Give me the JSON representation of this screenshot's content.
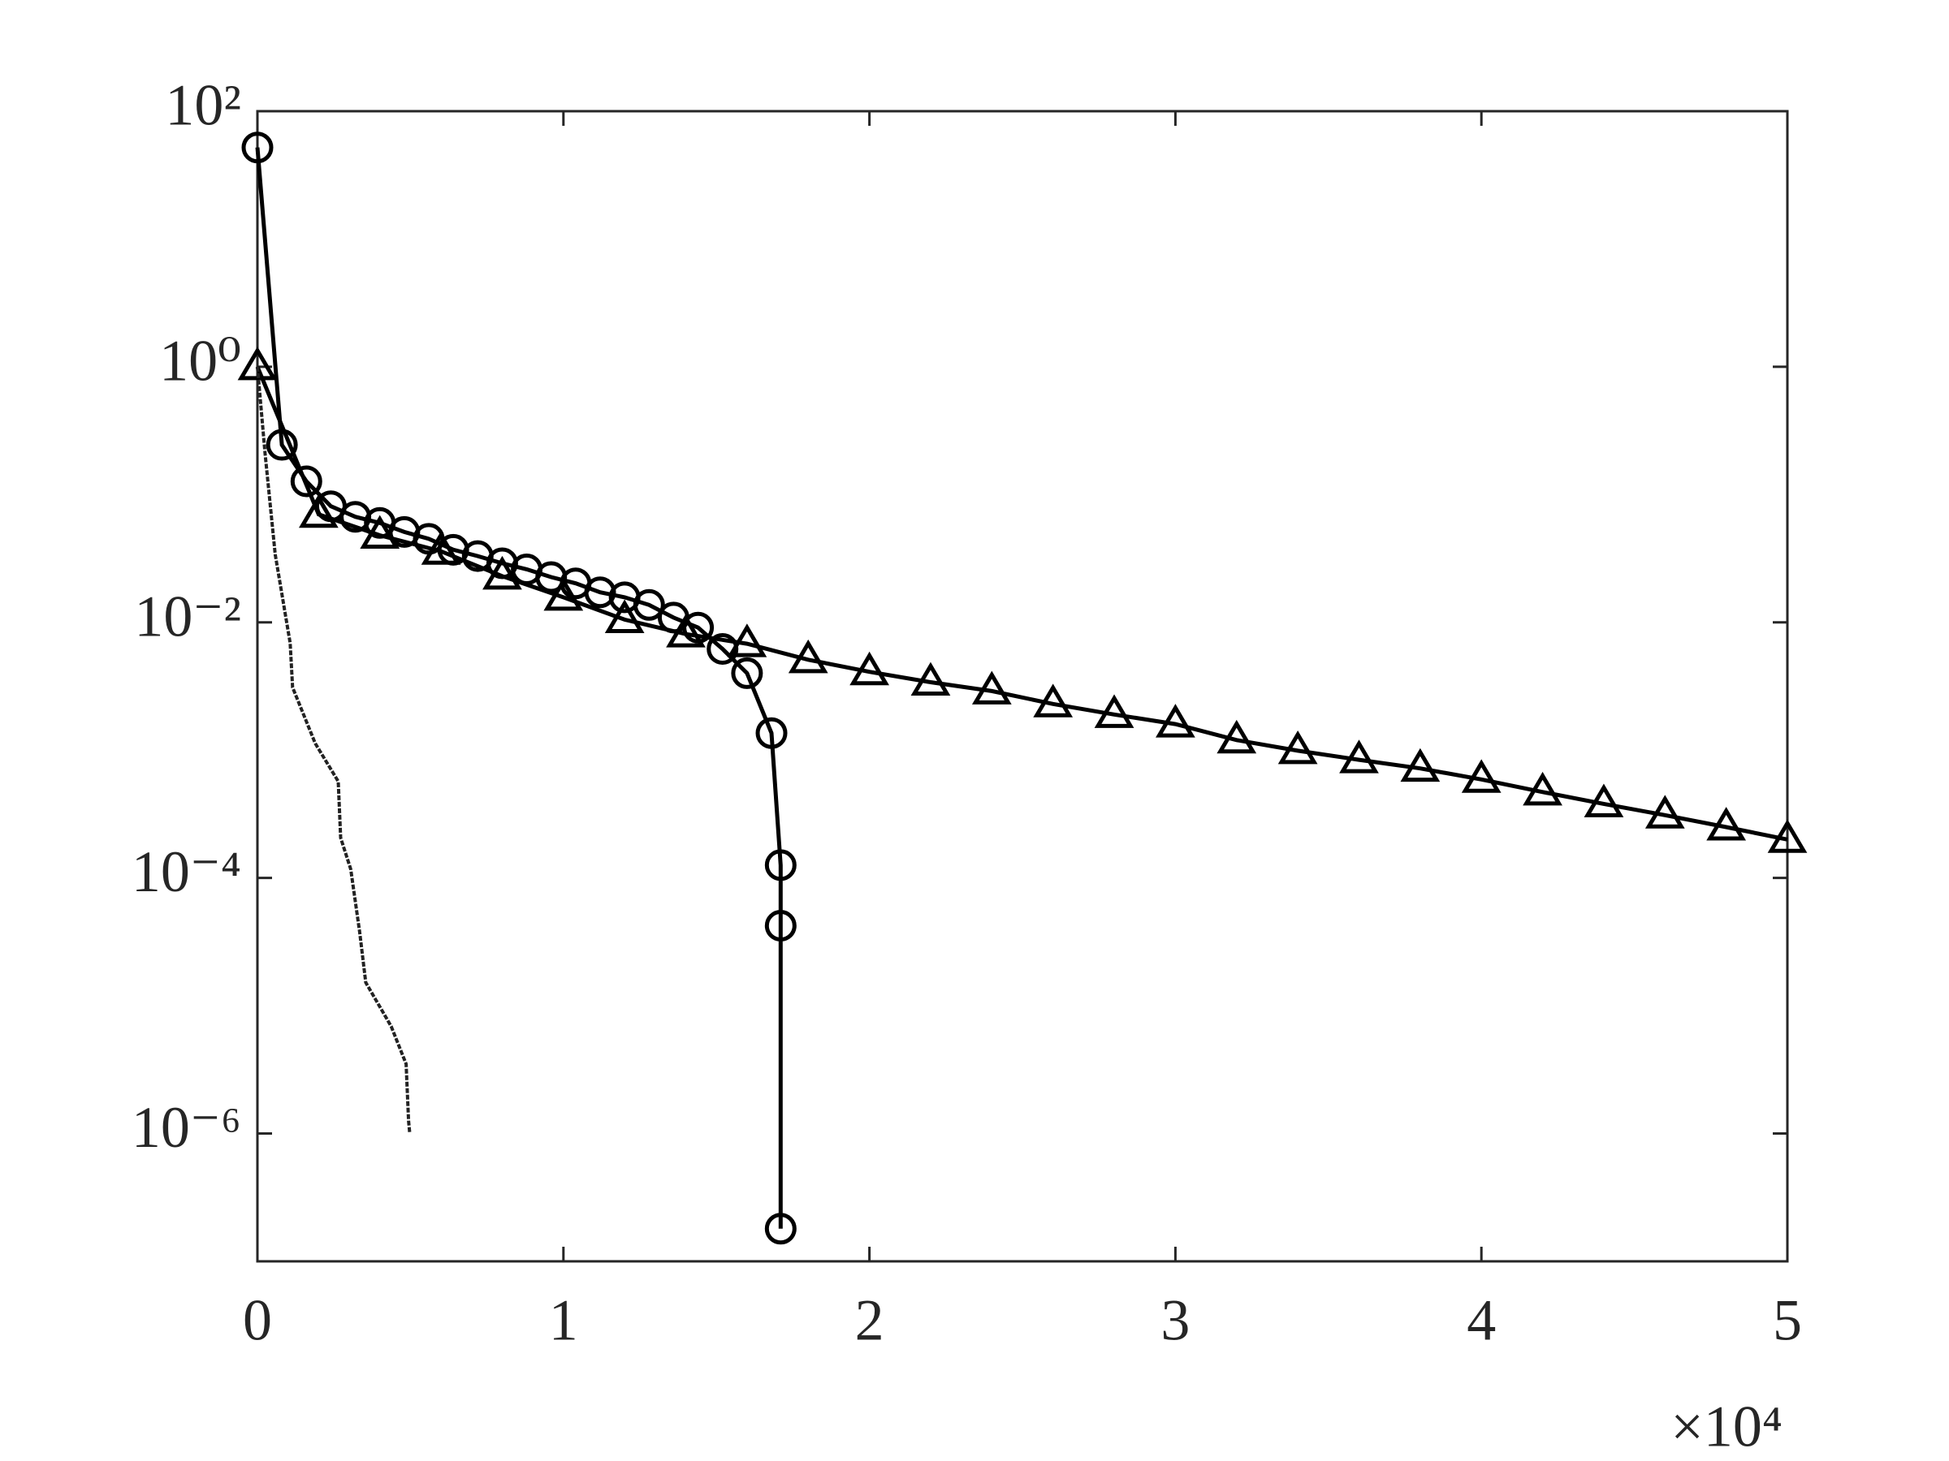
{
  "chart_data": {
    "type": "line",
    "xlim": [
      0,
      50000
    ],
    "xticks": [
      0,
      {
        "value": 10000,
        "label": "1"
      },
      {
        "value": 20000,
        "label": "2"
      },
      {
        "value": 30000,
        "label": "3"
      },
      {
        "value": 40000,
        "label": "4"
      },
      {
        "value": 50000,
        "label": "5"
      }
    ],
    "x_multiplier": "×10⁴",
    "ylim": [
      1e-07,
      100
    ],
    "y_scale": "log",
    "yticks": [
      {
        "value": 100,
        "label": "10²"
      },
      {
        "value": 1,
        "label": "10⁰"
      },
      {
        "value": 0.01,
        "label": "10⁻²"
      },
      {
        "value": 0.0001,
        "label": "10⁻⁴"
      },
      {
        "value": 1e-06,
        "label": "10⁻⁶"
      }
    ],
    "grid": false,
    "series": [
      {
        "color": "#000000",
        "marker": "triangle",
        "x": [
          0,
          2000,
          4000,
          6000,
          8000,
          10000,
          12000,
          14000,
          16000,
          18000,
          20000,
          22000,
          24000,
          26000,
          28000,
          30000,
          32000,
          34000,
          36000,
          38000,
          40000,
          42000,
          44000,
          46000,
          48000,
          50000
        ],
        "values": [
          1,
          0.07,
          0.048,
          0.036,
          0.023,
          0.0157,
          0.0105,
          0.0081,
          0.0068,
          0.0051,
          0.0041,
          0.0034,
          0.0029,
          0.0023,
          0.0019,
          0.0016,
          0.0012,
          0.00099,
          0.00084,
          0.00072,
          0.00059,
          0.00047,
          0.00038,
          0.00031,
          0.00025,
          0.0002
        ]
      },
      {
        "color": "#000000",
        "marker": "circle",
        "x": [
          0,
          800,
          1600,
          2400,
          3200,
          4000,
          4800,
          5600,
          6400,
          7200,
          8000,
          8800,
          9600,
          10400,
          11200,
          12000,
          12800,
          13600,
          14400,
          15200,
          16000,
          16800,
          17100,
          17100,
          17100
        ],
        "values": [
          52,
          0.245,
          0.127,
          0.081,
          0.067,
          0.06,
          0.051,
          0.045,
          0.037,
          0.033,
          0.029,
          0.026,
          0.0226,
          0.0202,
          0.0172,
          0.0157,
          0.0137,
          0.0109,
          0.0091,
          0.0062,
          0.004,
          0.00136,
          0.000126,
          4.23e-05,
          1.8e-07
        ]
      },
      {
        "color": "#222222",
        "marker": "none",
        "x": [
          0,
          250,
          580,
          1070,
          1150,
          1890,
          2640,
          2720,
          3050,
          3340,
          3540,
          4370,
          4860,
          4940,
          4980
        ],
        "values": [
          1,
          0.21,
          0.034,
          0.0069,
          0.0031,
          0.00113,
          0.00057,
          0.000206,
          0.000117,
          3.77e-05,
          1.52e-05,
          6.9e-06,
          3.5e-06,
          1.26e-06,
          1e-06
        ]
      }
    ]
  }
}
